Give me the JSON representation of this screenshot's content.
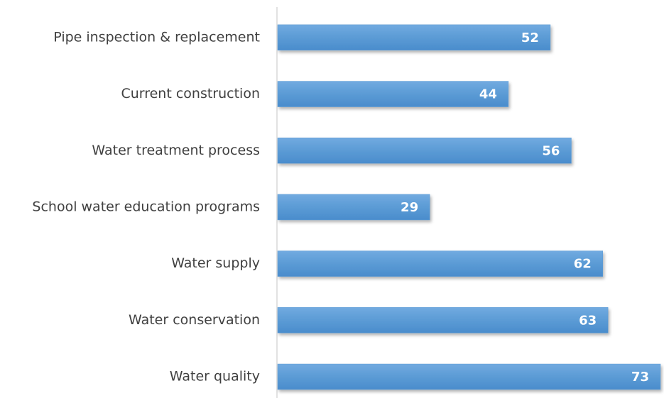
{
  "chart_data": {
    "type": "bar",
    "orientation": "horizontal",
    "categories": [
      "Pipe inspection & replacement",
      "Current construction",
      "Water treatment process",
      "School water education programs",
      "Water supply",
      "Water conservation",
      "Water quality"
    ],
    "values": [
      52,
      44,
      56,
      29,
      62,
      63,
      73
    ],
    "color": "#5b9bd5"
  }
}
